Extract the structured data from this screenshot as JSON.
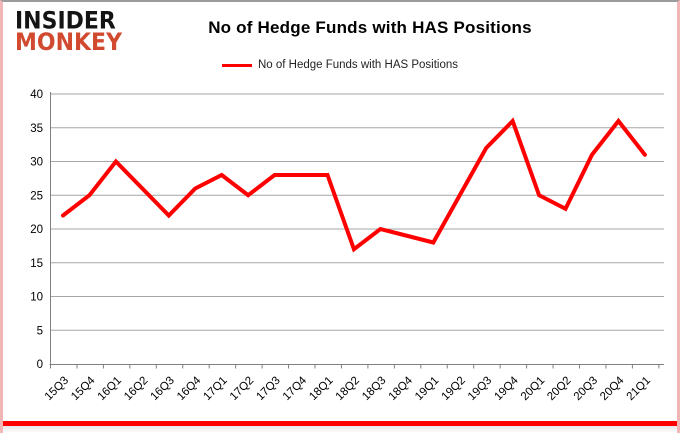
{
  "logo": {
    "line1": "INSIDER",
    "line2": "MONKEY"
  },
  "header": {
    "title": "No of Hedge Funds with HAS Positions"
  },
  "legend": {
    "label": "No of Hedge Funds with HAS Positions",
    "color": "#ff0000"
  },
  "chart_data": {
    "type": "line",
    "title": "No of Hedge Funds with HAS Positions",
    "categories": [
      "15Q3",
      "15Q4",
      "16Q1",
      "16Q2",
      "16Q3",
      "16Q4",
      "17Q1",
      "17Q2",
      "17Q3",
      "17Q4",
      "18Q1",
      "18Q2",
      "18Q3",
      "18Q4",
      "19Q1",
      "19Q2",
      "19Q3",
      "19Q4",
      "20Q1",
      "20Q2",
      "20Q3",
      "20Q4",
      "21Q1"
    ],
    "values": [
      22,
      25,
      30,
      26,
      22,
      26,
      28,
      25,
      28,
      28,
      28,
      17,
      20,
      19,
      18,
      25,
      32,
      36,
      25,
      23,
      31,
      36,
      31
    ],
    "series_name": "No of Hedge Funds with HAS Positions",
    "series_color": "#ff0000",
    "xlabel": "",
    "ylabel": "",
    "ylim": [
      0,
      40
    ],
    "y_ticks": [
      0,
      5,
      10,
      15,
      20,
      25,
      30,
      35,
      40
    ],
    "grid": true,
    "legend_position": "top"
  },
  "colors": {
    "line": "#ff0000",
    "gridline": "#a6a6a6",
    "axis": "#808080",
    "logo_red": "#d14a2f",
    "logo_black": "#141414",
    "frame_pink": "#f3b6b6",
    "bottom_bar": "#fe0000"
  }
}
